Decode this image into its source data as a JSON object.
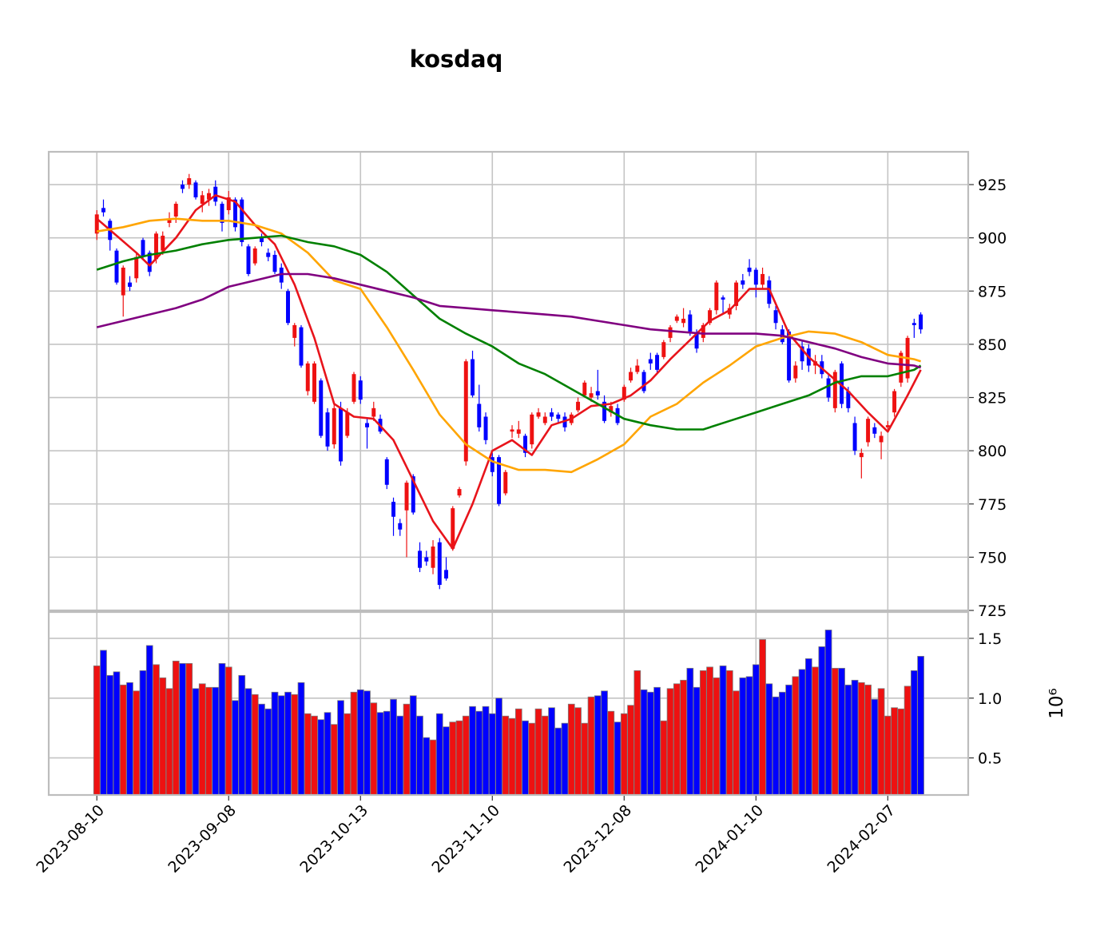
{
  "chart_data": [
    {
      "type": "candlestick",
      "title": "kosdaq",
      "up_color": "#ee1111",
      "down_color": "#0000ff",
      "open": [
        902,
        914,
        908,
        894,
        873,
        879,
        881,
        899,
        893,
        890,
        894,
        907,
        910,
        925,
        925,
        926,
        916,
        918,
        924,
        916,
        913,
        918,
        918,
        896,
        888,
        900,
        893,
        892,
        886,
        875,
        853,
        858,
        828,
        823,
        833,
        818,
        803,
        820,
        807,
        823,
        833,
        813,
        816,
        815,
        796,
        776,
        766,
        772,
        788,
        753,
        750,
        745,
        757,
        744,
        754,
        779,
        795,
        843,
        822,
        816,
        797,
        797,
        780,
        809,
        808,
        807,
        803,
        816,
        813,
        818,
        817,
        816,
        813,
        819,
        826,
        825,
        828,
        823,
        818,
        820,
        824,
        833,
        837,
        837,
        843,
        845,
        844,
        853,
        861,
        860,
        864,
        855,
        853,
        860,
        866,
        872,
        864,
        868,
        880,
        886,
        885,
        878,
        880,
        866,
        857,
        856,
        834,
        849,
        848,
        840,
        842,
        834,
        820,
        841,
        828,
        813,
        797,
        804,
        811,
        804,
        811,
        818,
        832,
        834,
        860,
        864
      ],
      "high": [
        913,
        918,
        909,
        895,
        887,
        882,
        893,
        900,
        894,
        903,
        903,
        912,
        917,
        927,
        930,
        927,
        922,
        923,
        927,
        917,
        922,
        919,
        919,
        897,
        896,
        902,
        895,
        894,
        888,
        876,
        860,
        859,
        842,
        842,
        834,
        820,
        822,
        823,
        820,
        837,
        835,
        815,
        823,
        817,
        797,
        778,
        768,
        786,
        789,
        757,
        753,
        758,
        759,
        750,
        774,
        783,
        843,
        847,
        831,
        818,
        799,
        798,
        791,
        812,
        814,
        808,
        818,
        820,
        818,
        820,
        818,
        818,
        818,
        825,
        833,
        830,
        838,
        826,
        823,
        822,
        831,
        839,
        843,
        838,
        846,
        846,
        852,
        859,
        864,
        867,
        866,
        857,
        860,
        867,
        880,
        873,
        869,
        880,
        883,
        890,
        886,
        886,
        882,
        868,
        859,
        857,
        842,
        852,
        850,
        845,
        845,
        836,
        838,
        842,
        830,
        816,
        801,
        816,
        813,
        809,
        814,
        829,
        847,
        854,
        862,
        865
      ],
      "low": [
        899,
        910,
        894,
        878,
        863,
        875,
        879,
        890,
        882,
        888,
        892,
        905,
        907,
        921,
        923,
        918,
        912,
        915,
        915,
        903,
        911,
        903,
        896,
        882,
        887,
        896,
        889,
        883,
        876,
        859,
        849,
        839,
        826,
        822,
        806,
        800,
        801,
        793,
        806,
        822,
        822,
        801,
        814,
        808,
        782,
        760,
        760,
        750,
        770,
        743,
        746,
        742,
        735,
        739,
        753,
        778,
        793,
        825,
        809,
        803,
        788,
        774,
        779,
        806,
        806,
        797,
        801,
        815,
        812,
        814,
        813,
        809,
        812,
        818,
        825,
        823,
        824,
        813,
        816,
        812,
        823,
        832,
        836,
        827,
        838,
        836,
        843,
        851,
        860,
        858,
        854,
        846,
        851,
        859,
        864,
        864,
        862,
        866,
        876,
        882,
        872,
        876,
        867,
        857,
        850,
        832,
        832,
        838,
        837,
        836,
        834,
        823,
        818,
        820,
        818,
        798,
        787,
        802,
        806,
        796,
        810,
        816,
        830,
        832,
        853,
        855
      ],
      "close": [
        911,
        912,
        899,
        879,
        886,
        877,
        891,
        891,
        884,
        902,
        901,
        909,
        916,
        923,
        928,
        919,
        920,
        921,
        917,
        907,
        919,
        905,
        898,
        883,
        895,
        898,
        891,
        884,
        879,
        860,
        859,
        840,
        841,
        841,
        807,
        802,
        820,
        795,
        818,
        836,
        824,
        811,
        820,
        809,
        784,
        769,
        763,
        785,
        771,
        745,
        748,
        755,
        737,
        740,
        773,
        782,
        842,
        826,
        811,
        805,
        790,
        775,
        790,
        810,
        810,
        799,
        817,
        818,
        816,
        816,
        815,
        811,
        817,
        823,
        832,
        827,
        826,
        814,
        821,
        813,
        830,
        837,
        840,
        828,
        841,
        838,
        851,
        858,
        863,
        862,
        856,
        848,
        859,
        866,
        879,
        871,
        867,
        879,
        878,
        884,
        878,
        883,
        869,
        860,
        851,
        833,
        840,
        842,
        840,
        842,
        836,
        825,
        837,
        822,
        820,
        800,
        799,
        815,
        808,
        807,
        812,
        828,
        846,
        853,
        859,
        857
      ],
      "series": [
        {
          "color": "#e8141b",
          "x": [
            0,
            3,
            6,
            8,
            12,
            15,
            18,
            21,
            24,
            27,
            30,
            33,
            36,
            39,
            42,
            45,
            48,
            51,
            54,
            57,
            60,
            63,
            66,
            69,
            72,
            75,
            78,
            81,
            84,
            87,
            90,
            93,
            96,
            99,
            102,
            105,
            108,
            111,
            114,
            117,
            120,
            123,
            125
          ],
          "values": [
            909,
            901,
            893,
            887,
            900,
            913,
            920,
            917,
            906,
            897,
            878,
            853,
            822,
            816,
            815,
            805,
            786,
            767,
            754,
            775,
            800,
            805,
            798,
            812,
            815,
            821,
            822,
            826,
            833,
            843,
            852,
            861,
            866,
            876,
            876,
            855,
            844,
            836,
            828,
            818,
            809,
            826,
            838
          ]
        },
        {
          "color": "#ffa500",
          "x": [
            0,
            4,
            8,
            12,
            16,
            20,
            24,
            28,
            32,
            36,
            40,
            44,
            48,
            52,
            56,
            60,
            64,
            68,
            72,
            76,
            80,
            84,
            88,
            92,
            96,
            100,
            104,
            108,
            112,
            116,
            120,
            124,
            125
          ],
          "values": [
            903,
            905,
            908,
            909,
            908,
            908,
            906,
            902,
            893,
            880,
            876,
            858,
            838,
            817,
            803,
            795,
            791,
            791,
            790,
            796,
            803,
            816,
            822,
            832,
            840,
            849,
            853,
            856,
            855,
            851,
            845,
            843,
            842
          ]
        },
        {
          "color": "#008000",
          "x": [
            0,
            4,
            8,
            12,
            16,
            20,
            24,
            28,
            32,
            36,
            40,
            44,
            48,
            52,
            56,
            60,
            64,
            68,
            72,
            76,
            80,
            84,
            88,
            92,
            96,
            100,
            104,
            108,
            112,
            116,
            120,
            124,
            125
          ],
          "values": [
            885,
            889,
            892,
            894,
            897,
            899,
            900,
            901,
            898,
            896,
            892,
            884,
            873,
            862,
            855,
            849,
            841,
            836,
            829,
            822,
            815,
            812,
            810,
            810,
            814,
            818,
            822,
            826,
            832,
            835,
            835,
            838,
            840
          ]
        },
        {
          "color": "#800080",
          "x": [
            0,
            4,
            8,
            12,
            16,
            20,
            24,
            28,
            32,
            36,
            40,
            44,
            48,
            52,
            56,
            60,
            64,
            68,
            72,
            76,
            80,
            84,
            88,
            92,
            96,
            100,
            104,
            108,
            112,
            116,
            120,
            124,
            125
          ],
          "values": [
            858,
            861,
            864,
            867,
            871,
            877,
            880,
            883,
            883,
            881,
            878,
            875,
            872,
            868,
            867,
            866,
            865,
            864,
            863,
            861,
            859,
            857,
            856,
            855,
            855,
            855,
            854,
            851,
            848,
            844,
            841,
            840,
            839
          ]
        }
      ],
      "xlim": [
        -7.3,
        132.2
      ],
      "ylim": [
        725,
        940.4
      ],
      "yticks": [
        725,
        750,
        775,
        800,
        825,
        850,
        875,
        900,
        925
      ],
      "grid": true
    },
    {
      "type": "bar",
      "color_from": "candles",
      "values": [
        1.27,
        1.4,
        1.19,
        1.22,
        1.11,
        1.13,
        1.06,
        1.23,
        1.44,
        1.28,
        1.17,
        1.08,
        1.31,
        1.29,
        1.29,
        1.08,
        1.12,
        1.09,
        1.09,
        1.29,
        1.26,
        0.98,
        1.19,
        1.08,
        1.03,
        0.95,
        0.91,
        1.05,
        1.02,
        1.05,
        1.03,
        1.13,
        0.87,
        0.85,
        0.82,
        0.88,
        0.78,
        0.98,
        0.87,
        1.05,
        1.07,
        1.06,
        0.96,
        0.88,
        0.89,
        0.99,
        0.85,
        0.95,
        1.02,
        0.85,
        0.67,
        0.65,
        0.87,
        0.76,
        0.8,
        0.81,
        0.85,
        0.93,
        0.89,
        0.93,
        0.87,
        1.0,
        0.85,
        0.83,
        0.91,
        0.81,
        0.79,
        0.91,
        0.85,
        0.92,
        0.75,
        0.79,
        0.95,
        0.92,
        0.79,
        1.01,
        1.02,
        1.06,
        0.89,
        0.8,
        0.87,
        0.94,
        1.23,
        1.07,
        1.05,
        1.09,
        0.81,
        1.08,
        1.12,
        1.15,
        1.25,
        1.09,
        1.23,
        1.26,
        1.17,
        1.27,
        1.23,
        1.06,
        1.17,
        1.18,
        1.28,
        1.49,
        1.12,
        1.01,
        1.05,
        1.11,
        1.18,
        1.24,
        1.33,
        1.26,
        1.43,
        1.57,
        1.25,
        1.25,
        1.11,
        1.15,
        1.13,
        1.11,
        0.99,
        1.08,
        0.85,
        0.92,
        0.91,
        1.1,
        1.23,
        1.35
      ],
      "y_offset_label": "10⁶",
      "xlim": [
        -7.3,
        132.2
      ],
      "ylim": [
        0.19,
        1.72
      ],
      "yticks": [
        {
          "value": 0.5,
          "label": "0.5"
        },
        {
          "value": 1.0,
          "label": "1.0"
        },
        {
          "value": 1.5,
          "label": "1.5"
        }
      ],
      "xticks": [
        {
          "value": 0,
          "label": "2023-08-10"
        },
        {
          "value": 20,
          "label": "2023-09-08"
        },
        {
          "value": 40,
          "label": "2023-10-13"
        },
        {
          "value": 60,
          "label": "2023-11-10"
        },
        {
          "value": 80,
          "label": "2023-12-08"
        },
        {
          "value": 100,
          "label": "2024-01-10"
        },
        {
          "value": 120,
          "label": "2024-02-07"
        }
      ],
      "grid": true
    }
  ]
}
